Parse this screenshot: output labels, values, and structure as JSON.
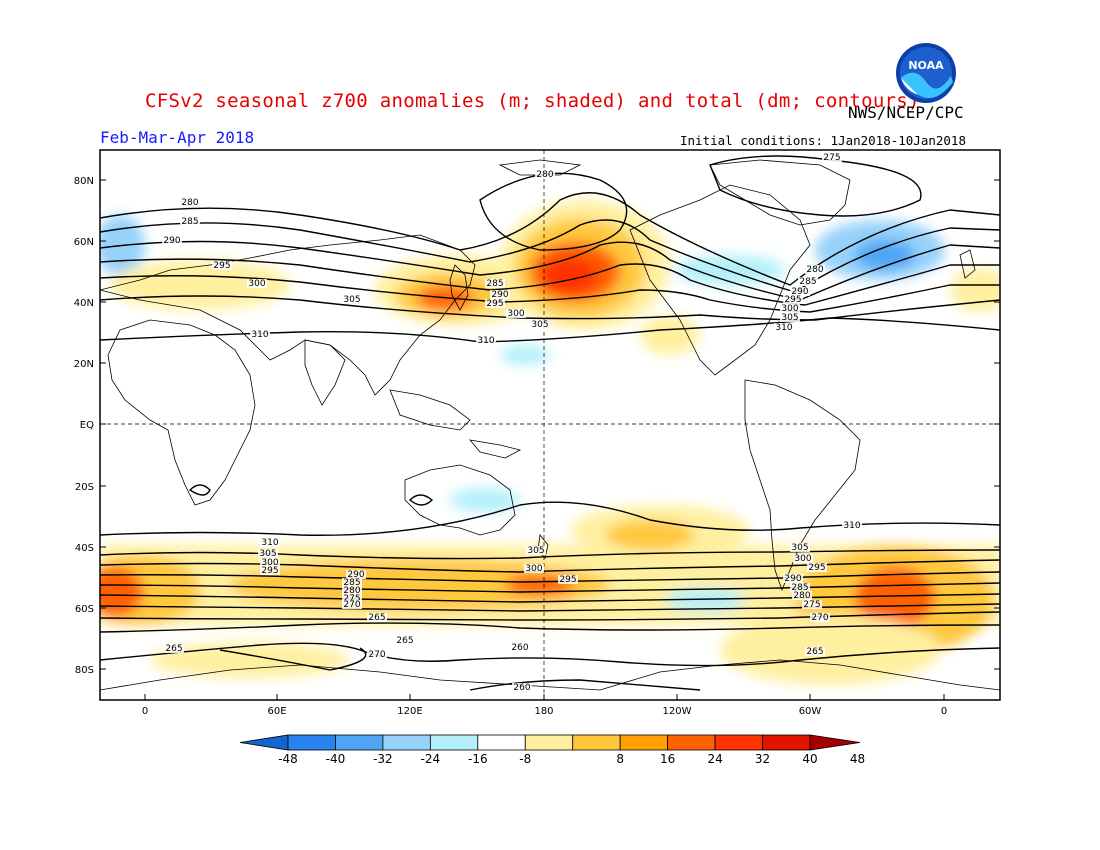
{
  "header": {
    "title": "CFSv2 seasonal z700 anomalies (m; shaded) and total (dm; contours)",
    "agency": "NWS/NCEP/CPC",
    "period": "Feb-Mar-Apr 2018",
    "initial_conditions": "Initial conditions: 1Jan2018-10Jan2018",
    "logo_text": "NOAA"
  },
  "axes": {
    "lat_labels": [
      "80N",
      "60N",
      "40N",
      "20N",
      "EQ",
      "20S",
      "40S",
      "60S",
      "80S"
    ],
    "lon_labels": [
      "0",
      "60E",
      "120E",
      "180",
      "120W",
      "60W",
      "0"
    ]
  },
  "contour_labels": {
    "nh": [
      "275",
      "280",
      "280",
      "285",
      "290",
      "295",
      "300",
      "305",
      "310",
      "285",
      "290",
      "295",
      "300",
      "305",
      "310",
      "280",
      "285",
      "290",
      "295",
      "300",
      "305",
      "310"
    ],
    "sh": [
      "310",
      "310",
      "305",
      "300",
      "295",
      "290",
      "285",
      "280",
      "275",
      "270",
      "265",
      "265",
      "265",
      "270",
      "260",
      "260",
      "305",
      "300",
      "295",
      "305",
      "300",
      "295",
      "290",
      "285",
      "280",
      "275",
      "270",
      "265"
    ]
  },
  "colorbar": {
    "labels": [
      "-48",
      "-40",
      "-32",
      "-24",
      "-16",
      "-8",
      "8",
      "16",
      "24",
      "32",
      "40",
      "48"
    ],
    "colors": [
      "#1464d2",
      "#2882f0",
      "#50a5f5",
      "#96d2fa",
      "#b4f0fa",
      "#ffffff",
      "#fff0a0",
      "#ffc83c",
      "#ffa000",
      "#ff6000",
      "#ff3200",
      "#e11400",
      "#a50000"
    ]
  },
  "colors": {
    "title": "#e60000",
    "period": "#1a1aff"
  }
}
